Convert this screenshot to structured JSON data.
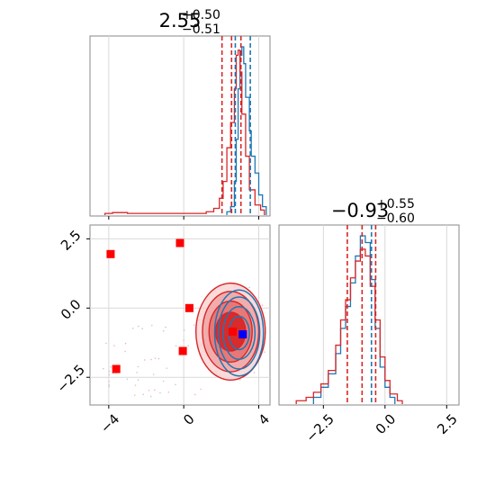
{
  "chart_data": [
    {
      "panel": "hist-param-1",
      "type": "histogram",
      "title": {
        "value": "2.55",
        "upper": "+0.50",
        "lower": "−0.51"
      },
      "xlim": [
        -5,
        4.6
      ],
      "x_ticks": [
        -4,
        0,
        4
      ],
      "grid": true,
      "series": [
        {
          "color": "#1f77b4",
          "bins": [
            [
              2.3,
              0.02
            ],
            [
              2.5,
              0.05
            ],
            [
              2.7,
              0.2
            ],
            [
              2.8,
              0.45
            ],
            [
              2.9,
              0.75
            ],
            [
              3.0,
              0.95
            ],
            [
              3.1,
              1.0
            ],
            [
              3.2,
              0.9
            ],
            [
              3.3,
              0.7
            ],
            [
              3.5,
              0.5
            ],
            [
              3.6,
              0.35
            ],
            [
              3.8,
              0.25
            ],
            [
              4.0,
              0.12
            ],
            [
              4.2,
              0.05
            ]
          ],
          "quantiles": [
            2.75,
            3.55
          ]
        },
        {
          "color": "#d62728",
          "bins": [
            [
              -4.2,
              0.01
            ],
            [
              -3.8,
              0.015
            ],
            [
              -3.0,
              0.01
            ],
            [
              -1.0,
              0.01
            ],
            [
              0.6,
              0.01
            ],
            [
              1.2,
              0.02
            ],
            [
              1.6,
              0.04
            ],
            [
              1.9,
              0.1
            ],
            [
              2.1,
              0.2
            ],
            [
              2.3,
              0.4
            ],
            [
              2.5,
              0.55
            ],
            [
              2.7,
              0.75
            ],
            [
              2.8,
              0.95
            ],
            [
              2.9,
              0.98
            ],
            [
              3.0,
              0.85
            ],
            [
              3.1,
              0.6
            ],
            [
              3.3,
              0.35
            ],
            [
              3.5,
              0.15
            ],
            [
              3.8,
              0.06
            ],
            [
              4.1,
              0.03
            ]
          ],
          "quantiles": [
            2.04,
            2.55,
            3.05
          ]
        }
      ]
    },
    {
      "panel": "hist-param-2",
      "type": "histogram",
      "title": {
        "value": "−0.93",
        "upper": "+0.55",
        "lower": "−0.60"
      },
      "xlim": [
        -4.3,
        3.0
      ],
      "x_ticks": [
        -2.5,
        0.0,
        2.5
      ],
      "x_tick_labels": [
        "−2.5",
        "0.0",
        "2.5"
      ],
      "grid": true,
      "series": [
        {
          "color": "#1f77b4",
          "bins": [
            [
              -2.9,
              0.04
            ],
            [
              -2.6,
              0.1
            ],
            [
              -2.3,
              0.18
            ],
            [
              -2.0,
              0.3
            ],
            [
              -1.8,
              0.45
            ],
            [
              -1.6,
              0.58
            ],
            [
              -1.4,
              0.72
            ],
            [
              -1.2,
              0.88
            ],
            [
              -1.0,
              1.0
            ],
            [
              -0.8,
              0.96
            ],
            [
              -0.6,
              0.74
            ],
            [
              -0.4,
              0.45
            ],
            [
              -0.2,
              0.22
            ],
            [
              0.0,
              0.1
            ],
            [
              0.2,
              0.04
            ]
          ],
          "quantiles": [
            -0.55
          ]
        },
        {
          "color": "#d62728",
          "bins": [
            [
              -3.6,
              0.02
            ],
            [
              -3.2,
              0.04
            ],
            [
              -2.9,
              0.07
            ],
            [
              -2.6,
              0.12
            ],
            [
              -2.3,
              0.2
            ],
            [
              -2.0,
              0.35
            ],
            [
              -1.8,
              0.5
            ],
            [
              -1.6,
              0.62
            ],
            [
              -1.4,
              0.75
            ],
            [
              -1.2,
              0.85
            ],
            [
              -1.0,
              0.92
            ],
            [
              -0.8,
              0.88
            ],
            [
              -0.6,
              0.7
            ],
            [
              -0.4,
              0.5
            ],
            [
              -0.2,
              0.28
            ],
            [
              0.0,
              0.14
            ],
            [
              0.2,
              0.06
            ],
            [
              0.5,
              0.02
            ]
          ],
          "quantiles": [
            -1.53,
            -0.93,
            -0.38
          ]
        }
      ]
    },
    {
      "panel": "scatter-2d",
      "type": "scatter",
      "xlim": [
        -5,
        4.6
      ],
      "ylim": [
        -3.5,
        3.0
      ],
      "x_ticks": [
        -4,
        0,
        4
      ],
      "x_tick_labels": [
        "−4",
        "0",
        "4"
      ],
      "y_ticks": [
        -2.5,
        0.0,
        2.5
      ],
      "y_tick_labels": [
        "−2.5",
        "0.0",
        "2.5"
      ],
      "grid": true,
      "contours": [
        {
          "color": "#d62728",
          "center": [
            2.5,
            -0.85
          ],
          "radii": [
            [
              0.8,
              0.7
            ],
            [
              1.15,
              1.1
            ],
            [
              1.5,
              1.45
            ],
            [
              1.85,
              1.75
            ]
          ]
        },
        {
          "color": "#1f77b4",
          "center": [
            2.95,
            -0.9
          ],
          "radii": [
            [
              0.55,
              0.6
            ],
            [
              0.85,
              0.95
            ],
            [
              1.1,
              1.3
            ],
            [
              1.3,
              1.55
            ]
          ]
        }
      ],
      "red_markers": [
        [
          -3.9,
          1.95
        ],
        [
          -0.2,
          2.35
        ],
        [
          0.3,
          0.0
        ],
        [
          -0.05,
          -1.55
        ],
        [
          -3.6,
          -2.2
        ],
        [
          2.6,
          -0.85
        ]
      ],
      "blue_markers": [
        [
          3.15,
          -0.95
        ]
      ],
      "marker_color_red": "#ff0000",
      "marker_color_blue": "#0000ff"
    }
  ]
}
